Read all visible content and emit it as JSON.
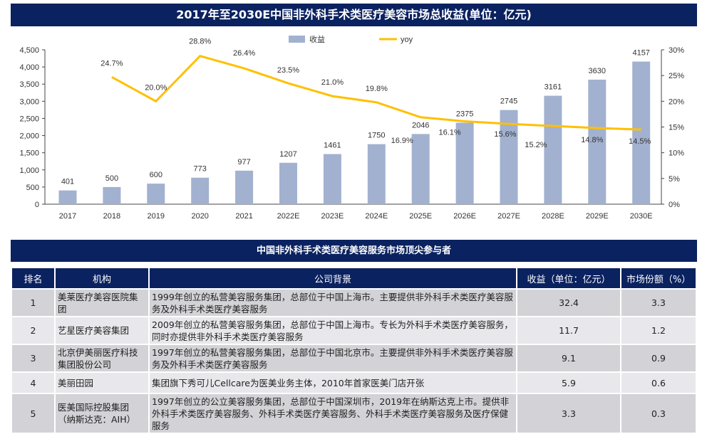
{
  "chart_title": "2017年至2030E中国非外科手术类医疗美容市场总收益(单位：亿元)",
  "chart_data": {
    "type": "bar+line",
    "title": "2017年至2030E中国非外科手术类医疗美容市场总收益(单位：亿元)",
    "categories": [
      "2017",
      "2018",
      "2019",
      "2020",
      "2021",
      "2022E",
      "2023E",
      "2024E",
      "2025E",
      "2026E",
      "2027E",
      "2028E",
      "2029E",
      "2030E"
    ],
    "series": [
      {
        "name": "收益",
        "type": "bar",
        "axis": "left",
        "color": "#a2b1d0",
        "values": [
          401,
          500,
          600,
          773,
          977,
          1207,
          1461,
          1750,
          2046,
          2375,
          2745,
          3161,
          3630,
          4157
        ]
      },
      {
        "name": "yoy",
        "type": "line",
        "axis": "right",
        "color": "#ffc000",
        "values": [
          null,
          24.7,
          20.0,
          28.8,
          26.4,
          23.5,
          21.0,
          19.8,
          16.9,
          16.1,
          15.6,
          15.2,
          14.8,
          14.5
        ]
      }
    ],
    "left_axis": {
      "ylim": [
        0,
        4500
      ],
      "ticks": [
        "0",
        "500",
        "1,000",
        "1,500",
        "2,000",
        "2,500",
        "3,000",
        "3,500",
        "4,000",
        "4,500"
      ]
    },
    "right_axis": {
      "ylim": [
        0,
        30
      ],
      "ticks": [
        "0%",
        "5%",
        "10%",
        "15%",
        "20%",
        "25%",
        "30%"
      ]
    },
    "legend": "top-center",
    "grid": false
  },
  "table_title": "中国非外科手术类医疗美容服务市场顶尖参与者",
  "table": {
    "headers": [
      "排名",
      "机构",
      "公司背景",
      "收益（单位：亿元）",
      "市场份额（%）"
    ],
    "rows": [
      [
        "1",
        "美莱医疗美容医院集团",
        "1999年创立的私营美容服务集团，总部位于中国上海市。主要提供非外科手术类医疗美容服务及外科手术类医疗美容服务",
        "32.4",
        "3.3"
      ],
      [
        "2",
        "艺星医疗美容集团",
        "2009年创立的私营美容服务集团，总部位于中国上海市。专长为外科手术类医疗美容服务，同时亦提供非外科手术类医疗美容服务",
        "11.7",
        "1.2"
      ],
      [
        "3",
        "北京伊美丽医疗科技集团股份公司",
        "1997年创立的私营美容服务集团，总部位于中国北京市。主要提供非外科手术类医疗美容服务及外科手术类医疗美容服务",
        "9.1",
        "0.9"
      ],
      [
        "4",
        "美丽田园",
        "集团旗下秀可儿Cellcare为医美业务主体，2010年首家医美门店开张",
        "5.9",
        "0.6"
      ],
      [
        "5",
        "医美国际控股集团（纳斯达克：AIH）",
        "1997年创立的公立美容服务集团，总部位于中国深圳市，2019年在纳斯达克上市。提供非外科手术类医疗美容服务、外科手术类医疗美容服务、外科手术类医疗美容服务及医疗保健服务",
        "3.3",
        "0.3"
      ]
    ]
  }
}
